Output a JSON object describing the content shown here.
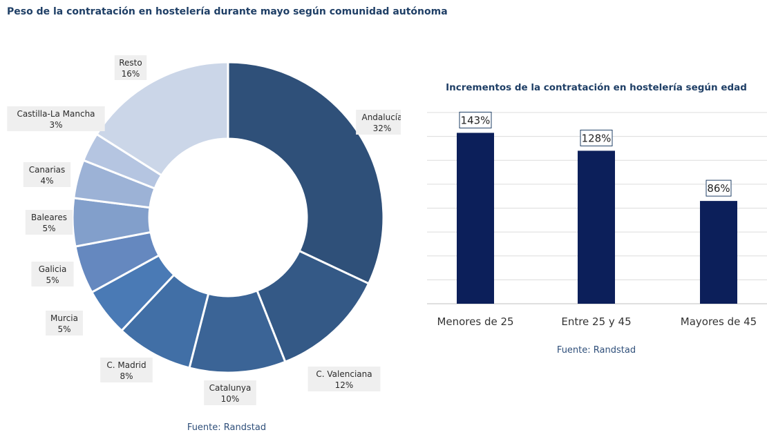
{
  "page_title": "Peso de la contratación en hostelería durante mayo según comunidad autónoma",
  "colors": {
    "title": "#1f3f66",
    "bar": "#0c1f5a",
    "grid": "#dcdcdc",
    "label_bg": "#efefef"
  },
  "chart_data": [
    {
      "type": "pie",
      "variant": "donut",
      "title": "Peso de la contratación en hostelería durante mayo según comunidad autónoma",
      "slices": [
        {
          "label": "Andalucía",
          "value": 32,
          "value_label": "32%",
          "color": "#2f5079"
        },
        {
          "label": "C. Valenciana",
          "value": 12,
          "value_label": "12%",
          "color": "#345986"
        },
        {
          "label": "Catalunya",
          "value": 10,
          "value_label": "10%",
          "color": "#3b6496"
        },
        {
          "label": "C. Madrid",
          "value": 8,
          "value_label": "8%",
          "color": "#416fa6"
        },
        {
          "label": "Murcia",
          "value": 5,
          "value_label": "5%",
          "color": "#4a7ab5"
        },
        {
          "label": "Galicia",
          "value": 5,
          "value_label": "5%",
          "color": "#6588bf"
        },
        {
          "label": "Baleares",
          "value": 5,
          "value_label": "5%",
          "color": "#829fcb"
        },
        {
          "label": "Canarias",
          "value": 4,
          "value_label": "4%",
          "color": "#9cb2d6"
        },
        {
          "label": "Castilla-La Mancha",
          "value": 3,
          "value_label": "3%",
          "color": "#b5c5e1"
        },
        {
          "label": "Resto",
          "value": 16,
          "value_label": "16%",
          "color": "#cbd6e8"
        }
      ],
      "source": "Fuente: Randstad"
    },
    {
      "type": "bar",
      "title": "Incrementos de la contratación en hostelería según edad",
      "categories": [
        "Menores de 25",
        "Entre 25 y 45",
        "Mayores de 45"
      ],
      "values": [
        143,
        128,
        86
      ],
      "value_labels": [
        "143%",
        "128%",
        "86%"
      ],
      "ylim": [
        0,
        160
      ],
      "grid": true,
      "source": "Fuente: Randstad"
    }
  ]
}
